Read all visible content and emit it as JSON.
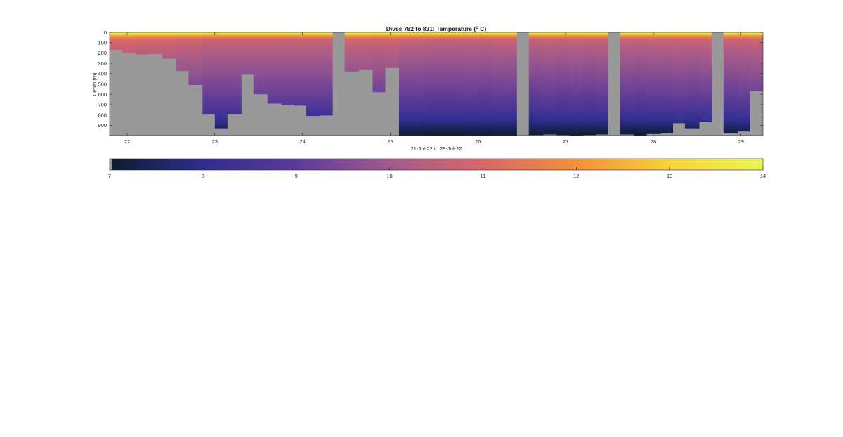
{
  "chart_data": {
    "type": "heatmap",
    "title_main": "Dives 782 to 831: Temperature (",
    "title_sup": "o",
    "title_end": " C)",
    "xlabel": "21-Jul-22 to 29-Jul-22",
    "ylabel": "Depth (m)",
    "xlim": [
      21.8,
      29.25
    ],
    "ylim": [
      0,
      1000
    ],
    "x_ticks": [
      22,
      23,
      24,
      25,
      26,
      27,
      28,
      29
    ],
    "y_ticks": [
      0,
      100,
      200,
      300,
      400,
      500,
      600,
      700,
      800,
      900
    ],
    "colorbar": {
      "range": [
        7,
        14
      ],
      "ticks": [
        7,
        8,
        9,
        10,
        11,
        12,
        13,
        14
      ],
      "colors": [
        "#0d1b2e",
        "#2e2e8f",
        "#5c3a9a",
        "#a15a8c",
        "#d9676a",
        "#f2903c",
        "#f7d23c",
        "#e9f556"
      ]
    },
    "no_data_color": "#999999",
    "profile": {
      "depths": [
        0,
        15,
        40,
        70,
        120,
        200,
        350,
        550,
        750,
        850,
        920,
        980
      ],
      "temps": [
        13.9,
        13.2,
        11.6,
        10.8,
        10.5,
        10.2,
        9.8,
        9.3,
        8.6,
        8.1,
        7.6,
        7.2
      ]
    },
    "dives": [
      {
        "x0": 21.8,
        "x1": 21.94,
        "max_depth": 170,
        "offset": 0.3
      },
      {
        "x0": 21.94,
        "x1": 22.1,
        "max_depth": 200,
        "offset": 0.3
      },
      {
        "x0": 22.1,
        "x1": 22.26,
        "max_depth": 215,
        "offset": 0.2
      },
      {
        "x0": 22.26,
        "x1": 22.4,
        "max_depth": 210,
        "offset": 0.2
      },
      {
        "x0": 22.4,
        "x1": 22.56,
        "max_depth": 255,
        "offset": 0.2
      },
      {
        "x0": 22.56,
        "x1": 22.7,
        "max_depth": 375,
        "offset": 0.1
      },
      {
        "x0": 22.7,
        "x1": 22.86,
        "max_depth": 510,
        "offset": 0.1
      },
      {
        "x0": 22.86,
        "x1": 23.0,
        "max_depth": 790,
        "offset": 0.0
      },
      {
        "x0": 23.0,
        "x1": 23.14,
        "max_depth": 930,
        "offset": 0.0
      },
      {
        "x0": 23.14,
        "x1": 23.3,
        "max_depth": 790,
        "offset": 0.0
      },
      {
        "x0": 23.3,
        "x1": 23.44,
        "max_depth": 410,
        "offset": 0.0
      },
      {
        "x0": 23.44,
        "x1": 23.6,
        "max_depth": 600,
        "offset": 0.0
      },
      {
        "x0": 23.6,
        "x1": 23.76,
        "max_depth": 690,
        "offset": 0.0
      },
      {
        "x0": 23.76,
        "x1": 23.9,
        "max_depth": 700,
        "offset": 0.0
      },
      {
        "x0": 23.9,
        "x1": 24.04,
        "max_depth": 710,
        "offset": 0.0
      },
      {
        "x0": 24.04,
        "x1": 24.2,
        "max_depth": 810,
        "offset": 0.0
      },
      {
        "x0": 24.2,
        "x1": 24.34,
        "max_depth": 805,
        "offset": 0.0
      },
      {
        "x0": 24.34,
        "x1": 24.48,
        "max_depth": 0,
        "offset": 0.0
      },
      {
        "x0": 24.48,
        "x1": 24.64,
        "max_depth": 380,
        "offset": 0.1
      },
      {
        "x0": 24.64,
        "x1": 24.8,
        "max_depth": 360,
        "offset": 0.1
      },
      {
        "x0": 24.8,
        "x1": 24.94,
        "max_depth": 580,
        "offset": 0.05
      },
      {
        "x0": 24.94,
        "x1": 25.1,
        "max_depth": 345,
        "offset": 0.1
      },
      {
        "x0": 25.1,
        "x1": 25.26,
        "max_depth": 1000,
        "offset": -0.05
      },
      {
        "x0": 25.26,
        "x1": 25.4,
        "max_depth": 1000,
        "offset": -0.05
      },
      {
        "x0": 25.4,
        "x1": 25.56,
        "max_depth": 1000,
        "offset": -0.1
      },
      {
        "x0": 25.56,
        "x1": 25.7,
        "max_depth": 1000,
        "offset": -0.1
      },
      {
        "x0": 25.7,
        "x1": 25.86,
        "max_depth": 1000,
        "offset": -0.1
      },
      {
        "x0": 25.86,
        "x1": 26.0,
        "max_depth": 1000,
        "offset": -0.05
      },
      {
        "x0": 26.0,
        "x1": 26.16,
        "max_depth": 1000,
        "offset": -0.1
      },
      {
        "x0": 26.16,
        "x1": 26.3,
        "max_depth": 1000,
        "offset": -0.05
      },
      {
        "x0": 26.3,
        "x1": 26.44,
        "max_depth": 1000,
        "offset": -0.05
      },
      {
        "x0": 26.44,
        "x1": 26.58,
        "max_depth": 0,
        "offset": 0.0
      },
      {
        "x0": 26.58,
        "x1": 26.74,
        "max_depth": 995,
        "offset": -0.1
      },
      {
        "x0": 26.74,
        "x1": 26.9,
        "max_depth": 990,
        "offset": -0.05
      },
      {
        "x0": 26.9,
        "x1": 27.04,
        "max_depth": 995,
        "offset": -0.1
      },
      {
        "x0": 27.04,
        "x1": 27.2,
        "max_depth": 1000,
        "offset": -0.05
      },
      {
        "x0": 27.2,
        "x1": 27.34,
        "max_depth": 995,
        "offset": -0.1
      },
      {
        "x0": 27.34,
        "x1": 27.48,
        "max_depth": 990,
        "offset": -0.05
      },
      {
        "x0": 27.48,
        "x1": 27.62,
        "max_depth": 0,
        "offset": 0.0
      },
      {
        "x0": 27.62,
        "x1": 27.78,
        "max_depth": 990,
        "offset": -0.05
      },
      {
        "x0": 27.78,
        "x1": 27.92,
        "max_depth": 1000,
        "offset": -0.1
      },
      {
        "x0": 27.92,
        "x1": 28.08,
        "max_depth": 985,
        "offset": -0.05
      },
      {
        "x0": 28.08,
        "x1": 28.22,
        "max_depth": 980,
        "offset": -0.05
      },
      {
        "x0": 28.22,
        "x1": 28.36,
        "max_depth": 880,
        "offset": 0.0
      },
      {
        "x0": 28.36,
        "x1": 28.52,
        "max_depth": 930,
        "offset": -0.05
      },
      {
        "x0": 28.52,
        "x1": 28.66,
        "max_depth": 870,
        "offset": 0.0
      },
      {
        "x0": 28.66,
        "x1": 28.8,
        "max_depth": 0,
        "offset": 0.0
      },
      {
        "x0": 28.8,
        "x1": 28.96,
        "max_depth": 980,
        "offset": -0.05
      },
      {
        "x0": 28.96,
        "x1": 29.1,
        "max_depth": 960,
        "offset": 0.0
      },
      {
        "x0": 29.1,
        "x1": 29.25,
        "max_depth": 570,
        "offset": 0.05
      }
    ]
  }
}
